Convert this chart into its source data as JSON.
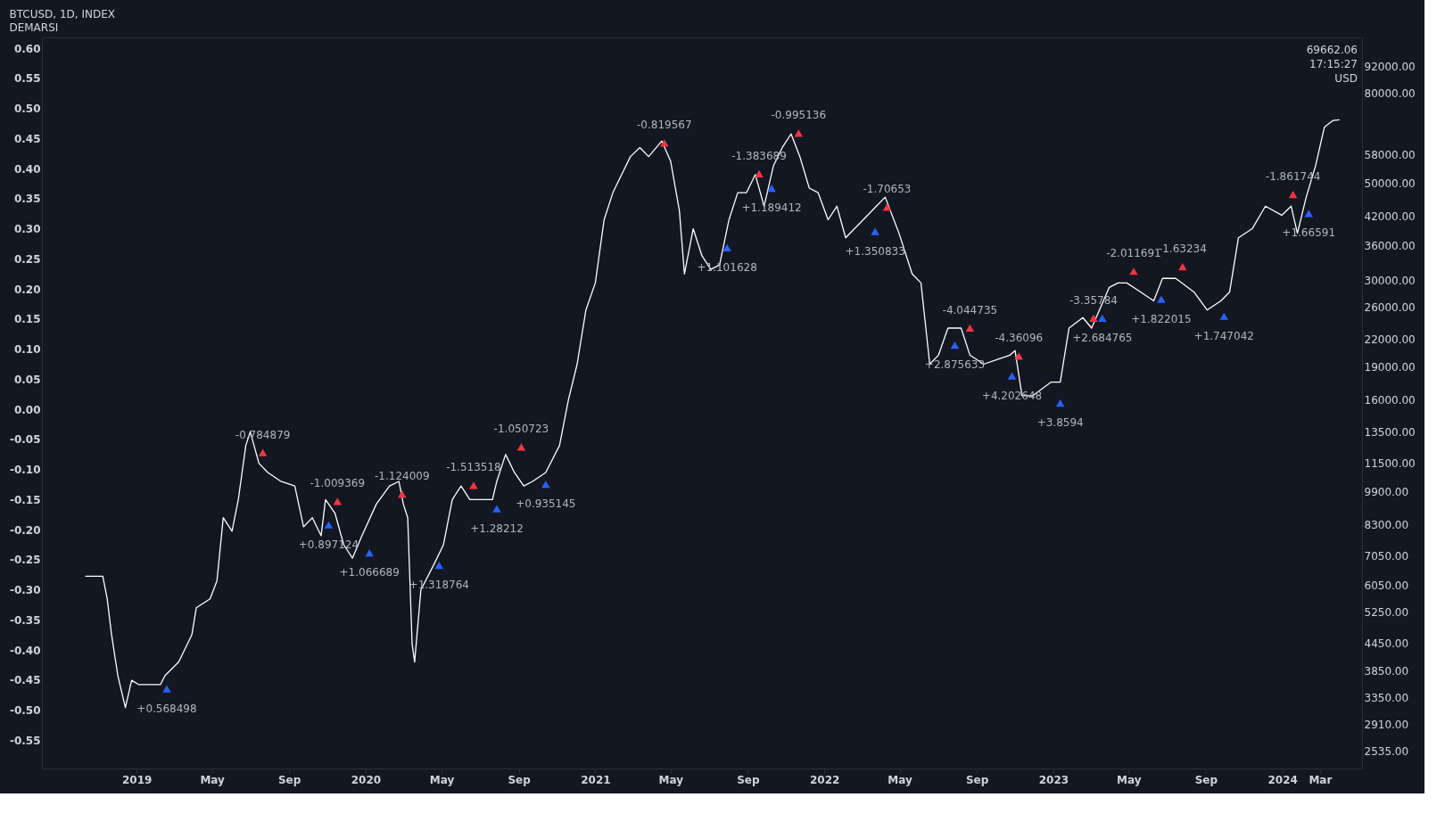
{
  "chart_data": {
    "type": "line",
    "title": "BTCUSD, 1D, INDEX",
    "subtitle": "DEMARSI",
    "xlim": [
      "2018-08-03",
      "2024-05-07"
    ],
    "xticks": [
      {
        "value": "2019-01-01",
        "label": "2019"
      },
      {
        "value": "2019-05-01",
        "label": "May"
      },
      {
        "value": "2019-09-01",
        "label": "Sep"
      },
      {
        "value": "2020-01-01",
        "label": "2020"
      },
      {
        "value": "2020-05-01",
        "label": "May"
      },
      {
        "value": "2020-09-01",
        "label": "Sep"
      },
      {
        "value": "2021-01-01",
        "label": "2021"
      },
      {
        "value": "2021-05-01",
        "label": "May"
      },
      {
        "value": "2021-09-01",
        "label": "Sep"
      },
      {
        "value": "2022-01-01",
        "label": "2022"
      },
      {
        "value": "2022-05-01",
        "label": "May"
      },
      {
        "value": "2022-09-01",
        "label": "Sep"
      },
      {
        "value": "2023-01-01",
        "label": "2023"
      },
      {
        "value": "2023-05-01",
        "label": "May"
      },
      {
        "value": "2023-09-01",
        "label": "Sep"
      },
      {
        "value": "2024-01-01",
        "label": "2024"
      },
      {
        "value": "2024-03-01",
        "label": "Mar"
      }
    ],
    "ylim": [
      -0.597,
      0.618
    ],
    "yticks": [
      {
        "value": 0.6,
        "label": "0.60"
      },
      {
        "value": 0.55,
        "label": "0.55"
      },
      {
        "value": 0.5,
        "label": "0.50"
      },
      {
        "value": 0.45,
        "label": "0.45"
      },
      {
        "value": 0.4,
        "label": "0.40"
      },
      {
        "value": 0.35,
        "label": "0.35"
      },
      {
        "value": 0.3,
        "label": "0.30"
      },
      {
        "value": 0.25,
        "label": "0.25"
      },
      {
        "value": 0.2,
        "label": "0.20"
      },
      {
        "value": 0.15,
        "label": "0.15"
      },
      {
        "value": 0.1,
        "label": "0.10"
      },
      {
        "value": 0.05,
        "label": "0.05"
      },
      {
        "value": 0,
        "label": "0.00"
      },
      {
        "value": -0.05,
        "label": "-0.05"
      },
      {
        "value": -0.1,
        "label": "-0.10"
      },
      {
        "value": -0.15,
        "label": "-0.15"
      },
      {
        "value": -0.2,
        "label": "-0.20"
      },
      {
        "value": -0.25,
        "label": "-0.25"
      },
      {
        "value": -0.3,
        "label": "-0.30"
      },
      {
        "value": -0.35,
        "label": "-0.35"
      },
      {
        "value": -0.4,
        "label": "-0.40"
      },
      {
        "value": -0.45,
        "label": "-0.45"
      },
      {
        "value": -0.5,
        "label": "-0.50"
      },
      {
        "value": -0.55,
        "label": "-0.55"
      }
    ],
    "y2lim": [
      2310,
      107300
    ],
    "log": "y2",
    "y2ticks": [
      {
        "value": 92000,
        "label": "92000.00"
      },
      {
        "value": 80000,
        "label": "80000.00"
      },
      {
        "value": 58000,
        "label": "58000.00"
      },
      {
        "value": 50000,
        "label": "50000.00"
      },
      {
        "value": 42000,
        "label": "42000.00"
      },
      {
        "value": 36000,
        "label": "36000.00"
      },
      {
        "value": 30000,
        "label": "30000.00"
      },
      {
        "value": 26000,
        "label": "26000.00"
      },
      {
        "value": 22000,
        "label": "22000.00"
      },
      {
        "value": 19000,
        "label": "19000.00"
      },
      {
        "value": 16000,
        "label": "16000.00"
      },
      {
        "value": 13500,
        "label": "13500.00"
      },
      {
        "value": 11500,
        "label": "11500.00"
      },
      {
        "value": 9900,
        "label": "9900.00"
      },
      {
        "value": 8300,
        "label": "8300.00"
      },
      {
        "value": 7050,
        "label": "7050.00"
      },
      {
        "value": 6050,
        "label": "6050.00"
      },
      {
        "value": 5250,
        "label": "5250.00"
      },
      {
        "value": 4450,
        "label": "4450.00"
      },
      {
        "value": 3850,
        "label": "3850.00"
      },
      {
        "value": 3350,
        "label": "3350.00"
      },
      {
        "value": 2910,
        "label": "2910.00"
      },
      {
        "value": 2535,
        "label": "2535.00"
      }
    ],
    "grid": false,
    "series": [
      {
        "axis": "y2",
        "color": "#ffffff",
        "x": [
          "2018-10-11",
          "2018-11-08",
          "2018-11-15",
          "2018-11-22",
          "2018-12-02",
          "2018-12-14",
          "2018-12-24",
          "2019-01-04",
          "2019-01-25",
          "2019-02-08",
          "2019-02-15",
          "2019-03-09",
          "2019-03-30",
          "2019-04-06",
          "2019-04-28",
          "2019-05-09",
          "2019-05-19",
          "2019-06-02",
          "2019-06-12",
          "2019-06-24",
          "2019-07-01",
          "2019-07-15",
          "2019-07-29",
          "2019-08-19",
          "2019-09-10",
          "2019-09-24",
          "2019-10-08",
          "2019-10-22",
          "2019-10-29",
          "2019-11-13",
          "2019-11-27",
          "2019-12-11",
          "2019-12-26",
          "2020-01-18",
          "2020-02-08",
          "2020-02-23",
          "2020-03-01",
          "2020-03-08",
          "2020-03-15",
          "2020-03-19",
          "2020-03-29",
          "2020-04-20",
          "2020-05-04",
          "2020-05-18",
          "2020-06-01",
          "2020-06-15",
          "2020-06-30",
          "2020-07-21",
          "2020-07-28",
          "2020-08-11",
          "2020-08-25",
          "2020-09-09",
          "2020-09-23",
          "2020-10-14",
          "2020-11-05",
          "2020-11-19",
          "2020-12-03",
          "2020-12-17",
          "2021-01-01",
          "2021-01-15",
          "2021-01-29",
          "2021-02-12",
          "2021-02-26",
          "2021-03-13",
          "2021-03-27",
          "2021-04-17",
          "2021-05-01",
          "2021-05-15",
          "2021-05-23",
          "2021-06-06",
          "2021-06-20",
          "2021-07-04",
          "2021-07-18",
          "2021-08-02",
          "2021-08-16",
          "2021-08-30",
          "2021-09-13",
          "2021-09-27",
          "2021-10-12",
          "2021-10-26",
          "2021-11-09",
          "2021-11-23",
          "2021-12-08",
          "2021-12-22",
          "2022-01-07",
          "2022-01-21",
          "2022-02-04",
          "2022-02-18",
          "2022-03-04",
          "2022-03-25",
          "2022-04-08",
          "2022-04-30",
          "2022-05-21",
          "2022-06-04",
          "2022-06-18",
          "2022-07-02",
          "2022-07-17",
          "2022-08-07",
          "2022-08-21",
          "2022-09-12",
          "2022-10-03",
          "2022-10-24",
          "2022-11-01",
          "2022-11-12",
          "2022-11-29",
          "2022-12-28",
          "2023-01-12",
          "2023-01-26",
          "2023-02-17",
          "2023-03-03",
          "2023-03-17",
          "2023-03-31",
          "2023-04-14",
          "2023-04-28",
          "2023-05-20",
          "2023-06-10",
          "2023-06-24",
          "2023-07-15",
          "2023-08-13",
          "2023-09-03",
          "2023-09-25",
          "2023-10-09",
          "2023-10-23",
          "2023-11-14",
          "2023-12-05",
          "2023-12-31",
          "2024-01-15",
          "2024-01-25",
          "2024-02-08",
          "2024-02-23",
          "2024-03-08",
          "2024-03-22",
          "2024-04-01"
        ],
        "values": [
          6340,
          6340,
          5630,
          4660,
          3760,
          3180,
          3670,
          3590,
          3590,
          3590,
          3760,
          4040,
          4660,
          5370,
          5630,
          6190,
          8620,
          8030,
          9480,
          12600,
          13530,
          11460,
          10930,
          10430,
          10180,
          8220,
          8620,
          7840,
          9480,
          8830,
          7480,
          6970,
          7840,
          9260,
          10180,
          10430,
          9260,
          8620,
          4440,
          4040,
          5900,
          6800,
          7480,
          9480,
          10180,
          9480,
          9480,
          9480,
          10430,
          12020,
          10930,
          10180,
          10430,
          10930,
          12600,
          15970,
          19300,
          25650,
          29570,
          41200,
          47500,
          52230,
          57400,
          60200,
          57400,
          62300,
          56060,
          43200,
          31000,
          39300,
          34090,
          31750,
          32510,
          41200,
          47500,
          47500,
          52230,
          44240,
          54760,
          60200,
          64640,
          57400,
          48640,
          47500,
          41200,
          44240,
          37480,
          39300,
          41200,
          44240,
          46390,
          38380,
          31000,
          29570,
          19300,
          20240,
          23330,
          23330,
          20240,
          19300,
          19770,
          20240,
          20730,
          16350,
          16350,
          17560,
          17560,
          23330,
          24650,
          23330,
          25950,
          28880,
          29570,
          29570,
          28200,
          26900,
          30280,
          30280,
          28200,
          25650,
          26900,
          28200,
          37480,
          39300,
          44240,
          42190,
          44240,
          38380,
          46390,
          54760,
          67000,
          69400,
          69662
        ]
      },
      {
        "type": "scatter",
        "axis": "y2",
        "color": "#f23645",
        "marker": "triangle",
        "x": [
          "2019-07-21",
          "2019-11-17",
          "2020-02-28",
          "2020-06-21",
          "2020-09-05",
          "2021-04-21",
          "2021-09-19",
          "2021-11-21",
          "2022-04-11",
          "2022-08-21",
          "2022-11-07",
          "2023-03-06",
          "2023-05-09",
          "2023-07-26",
          "2024-01-18"
        ],
        "values": [
          12130,
          9390,
          9760,
          10220,
          12490,
          61640,
          52450,
          64920,
          44030,
          23330,
          20150,
          24580,
          31440,
          32190,
          47040
        ]
      },
      {
        "type": "scatter",
        "axis": "y2",
        "color": "#2962ff",
        "marker": "triangle",
        "x": [
          "2019-02-18",
          "2019-11-03",
          "2020-01-07",
          "2020-04-27",
          "2020-07-28",
          "2020-10-14",
          "2021-07-30",
          "2021-10-09",
          "2022-03-23",
          "2022-07-28",
          "2022-10-27",
          "2023-01-12",
          "2023-03-20",
          "2023-06-22",
          "2023-09-30",
          "2024-02-12"
        ],
        "values": [
          3510,
          8300,
          7170,
          6710,
          9040,
          10270,
          35580,
          48640,
          38740,
          21330,
          18150,
          15740,
          24580,
          27150,
          24820,
          42590
        ]
      }
    ],
    "annotations": [
      "-0.784879",
      "-1.009369",
      "-1.124009",
      "-1.513518",
      "-1.050723",
      "-0.819567",
      "-1.383689",
      "-0.995136",
      "-1.70653",
      "-4.044735",
      "-4.36096",
      "-3.35784",
      "-2.011691",
      "-1.63234",
      "-1.861744",
      "+0.568498",
      "+0.897124",
      "+1.066689",
      "+1.318764",
      "+1.28212",
      "+0.935145",
      "+1.101628",
      "+1.189412",
      "+1.350833",
      "+2.875633",
      "+4.202648",
      "+3.8594",
      "+2.684765",
      "+1.822015",
      "+1.747042",
      "+1.66591",
      "69662.06",
      "17:15:27",
      "USD"
    ]
  }
}
